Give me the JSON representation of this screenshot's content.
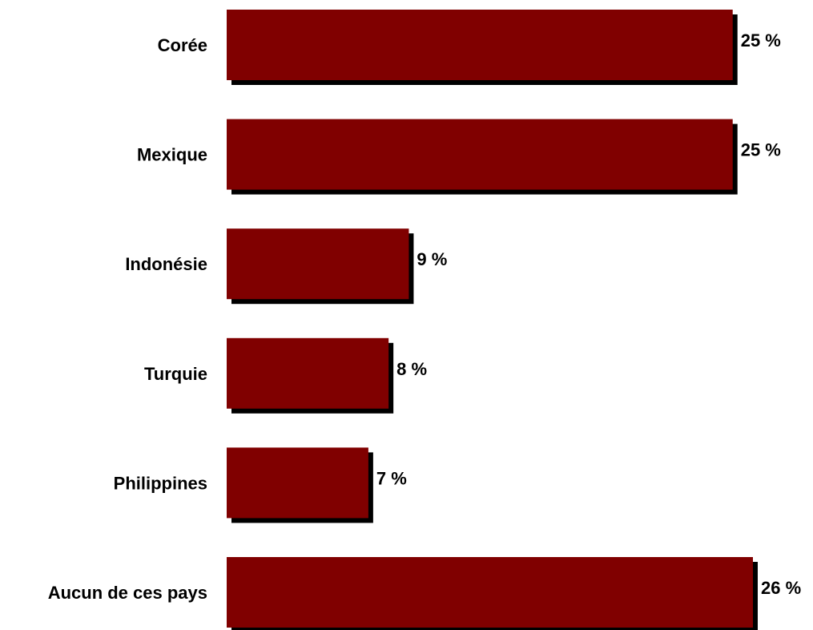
{
  "colors": {
    "bar": "#800000",
    "shadow": "#000000",
    "background": "#ffffff"
  },
  "chart_data": {
    "type": "bar",
    "orientation": "horizontal",
    "categories": [
      "Corée",
      "Mexique",
      "Indonésie",
      "Turquie",
      "Philippines",
      "Aucun de ces pays"
    ],
    "values": [
      25,
      25,
      9,
      8,
      7,
      26
    ],
    "value_labels": [
      "25 %",
      "25 %",
      "9 %",
      "8 %",
      "7 %",
      "26 %"
    ],
    "unit": "%",
    "xlim": [
      0,
      26
    ],
    "grid": false,
    "legend": "none",
    "title": "",
    "xlabel": "",
    "ylabel": ""
  }
}
